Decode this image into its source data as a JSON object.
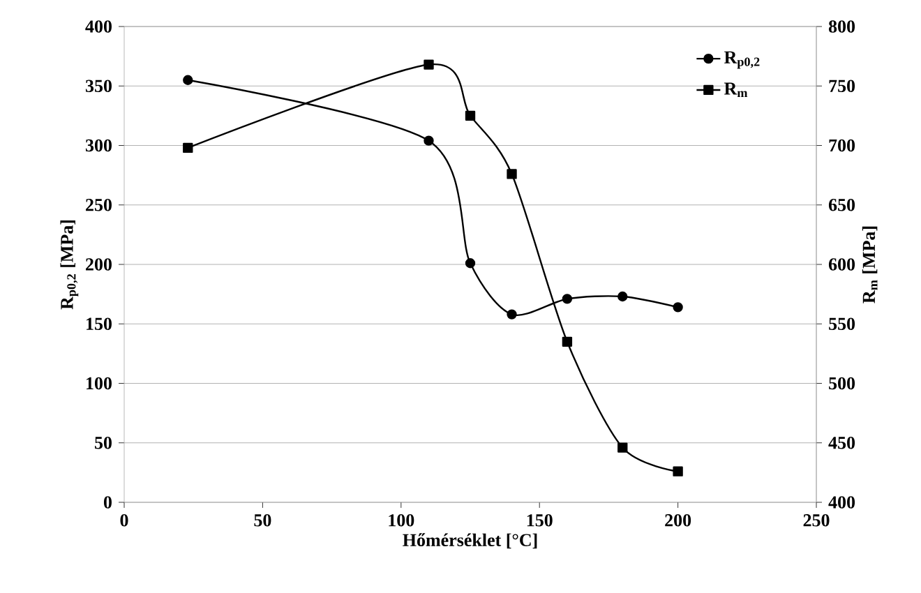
{
  "chart_data": {
    "type": "line",
    "xlabel": "Hőmérséklet [°C]",
    "ylabel": "R$_{p0,2}$ [MPa]",
    "y2label": "R$_{m}$ [MPa]",
    "x": [
      23,
      110,
      125,
      140,
      160,
      180,
      200
    ],
    "series": [
      {
        "name": "R$_{p0,2}$",
        "color": "#000000",
        "marker": "circle",
        "values": [
          355,
          304,
          201,
          158,
          171,
          173,
          164
        ]
      },
      {
        "name": "R$_{m}$",
        "color": "#000000",
        "marker": "square",
        "axis": "y2",
        "values": [
          698,
          768,
          725,
          676,
          535,
          446,
          426
        ]
      }
    ],
    "xlim": [
      0,
      250
    ],
    "xticks": [
      0,
      50,
      100,
      150,
      200,
      250
    ],
    "ylim": [
      0,
      400
    ],
    "yticks": [
      0,
      50,
      100,
      150,
      200,
      250,
      300,
      350,
      400
    ],
    "y2lim": [
      400,
      800
    ],
    "y2ticks": [
      400,
      450,
      500,
      550,
      600,
      650,
      700,
      750,
      800
    ],
    "grid": "y",
    "legend": "top right",
    "line_style": "solid"
  }
}
